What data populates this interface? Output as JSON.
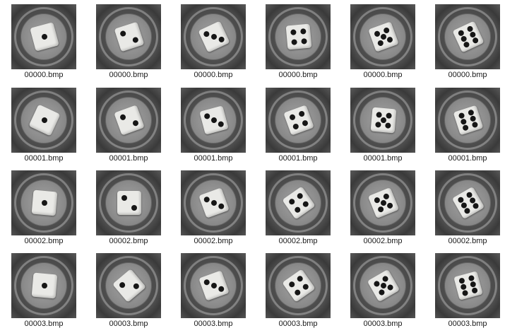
{
  "explorer": {
    "items": [
      {
        "name": "00000.bmp",
        "face": 1,
        "rotation": -15
      },
      {
        "name": "00000.bmp",
        "face": 2,
        "rotation": -18
      },
      {
        "name": "00000.bmp",
        "face": 3,
        "rotation": -25
      },
      {
        "name": "00000.bmp",
        "face": 4,
        "rotation": -5
      },
      {
        "name": "00000.bmp",
        "face": 5,
        "rotation": -20
      },
      {
        "name": "00000.bmp",
        "face": 6,
        "rotation": -25
      },
      {
        "name": "00001.bmp",
        "face": 1,
        "rotation": 25
      },
      {
        "name": "00001.bmp",
        "face": 2,
        "rotation": -20
      },
      {
        "name": "00001.bmp",
        "face": 3,
        "rotation": -15
      },
      {
        "name": "00001.bmp",
        "face": 4,
        "rotation": -20
      },
      {
        "name": "00001.bmp",
        "face": 5,
        "rotation": 5
      },
      {
        "name": "00001.bmp",
        "face": 6,
        "rotation": -18
      },
      {
        "name": "00002.bmp",
        "face": 1,
        "rotation": 5
      },
      {
        "name": "00002.bmp",
        "face": 2,
        "rotation": 0
      },
      {
        "name": "00002.bmp",
        "face": 3,
        "rotation": -20
      },
      {
        "name": "00002.bmp",
        "face": 4,
        "rotation": -35
      },
      {
        "name": "00002.bmp",
        "face": 5,
        "rotation": -22
      },
      {
        "name": "00002.bmp",
        "face": 6,
        "rotation": -30
      },
      {
        "name": "00003.bmp",
        "face": 1,
        "rotation": 5
      },
      {
        "name": "00003.bmp",
        "face": 2,
        "rotation": -40
      },
      {
        "name": "00003.bmp",
        "face": 3,
        "rotation": -20
      },
      {
        "name": "00003.bmp",
        "face": 4,
        "rotation": -35
      },
      {
        "name": "00003.bmp",
        "face": 5,
        "rotation": -30
      },
      {
        "name": "00003.bmp",
        "face": 6,
        "rotation": -15
      }
    ]
  }
}
